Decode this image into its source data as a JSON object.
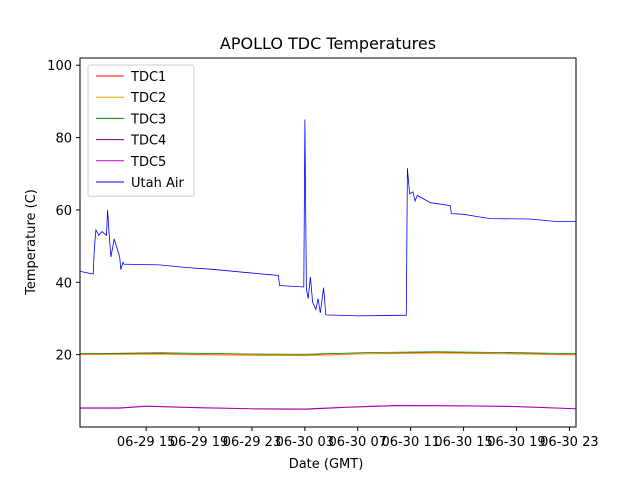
{
  "chart_data": {
    "type": "line",
    "title": "APOLLO TDC Temperatures",
    "xlabel": "Date (GMT)",
    "ylabel": "Temperature (C)",
    "xlim": [
      "2017-06-29 10:00",
      "2017-06-30 23:30"
    ],
    "ylim": [
      0,
      102
    ],
    "grid": false,
    "legend_position": "top-left",
    "x_ticks": [
      {
        "t": "2017-06-29 15:00",
        "label": "06-29 15"
      },
      {
        "t": "2017-06-29 19:00",
        "label": "06-29 19"
      },
      {
        "t": "2017-06-29 23:00",
        "label": "06-29 23"
      },
      {
        "t": "2017-06-30 03:00",
        "label": "06-30 03"
      },
      {
        "t": "2017-06-30 07:00",
        "label": "06-30 07"
      },
      {
        "t": "2017-06-30 11:00",
        "label": "06-30 11"
      },
      {
        "t": "2017-06-30 15:00",
        "label": "06-30 15"
      },
      {
        "t": "2017-06-30 19:00",
        "label": "06-30 19"
      },
      {
        "t": "2017-06-30 23:00",
        "label": "06-30 23"
      }
    ],
    "y_ticks": [
      20,
      40,
      60,
      80,
      100
    ],
    "series": [
      {
        "name": "TDC1",
        "color": "#ff0000",
        "points": [
          [
            "2017-06-29 10:00",
            20.1
          ],
          [
            "2017-06-29 16:00",
            20.2
          ],
          [
            "2017-06-29 22:00",
            19.9
          ],
          [
            "2017-06-30 03:00",
            19.8
          ],
          [
            "2017-06-30 08:00",
            20.3
          ],
          [
            "2017-06-30 13:00",
            20.5
          ],
          [
            "2017-06-30 18:00",
            20.3
          ],
          [
            "2017-06-30 23:30",
            20.0
          ]
        ]
      },
      {
        "name": "TDC2",
        "color": "#ffa500",
        "points": [
          [
            "2017-06-29 10:00",
            20.0
          ],
          [
            "2017-06-29 16:00",
            20.1
          ],
          [
            "2017-06-29 22:00",
            19.8
          ],
          [
            "2017-06-30 03:00",
            19.7
          ],
          [
            "2017-06-30 08:00",
            20.2
          ],
          [
            "2017-06-30 13:00",
            20.4
          ],
          [
            "2017-06-30 18:00",
            20.2
          ],
          [
            "2017-06-30 23:30",
            19.9
          ]
        ]
      },
      {
        "name": "TDC3",
        "color": "#008000",
        "points": [
          [
            "2017-06-29 10:00",
            20.3
          ],
          [
            "2017-06-29 16:00",
            20.5
          ],
          [
            "2017-06-29 22:00",
            20.2
          ],
          [
            "2017-06-30 03:00",
            20.1
          ],
          [
            "2017-06-30 08:00",
            20.6
          ],
          [
            "2017-06-30 13:00",
            20.8
          ],
          [
            "2017-06-30 18:00",
            20.6
          ],
          [
            "2017-06-30 23:30",
            20.3
          ]
        ]
      },
      {
        "name": "TDC4",
        "color": "#800080",
        "points": [
          [
            "2017-06-29 10:00",
            5.2
          ],
          [
            "2017-06-29 13:00",
            5.2
          ],
          [
            "2017-06-29 15:00",
            5.7
          ],
          [
            "2017-06-29 19:00",
            5.3
          ],
          [
            "2017-06-29 23:00",
            5.0
          ],
          [
            "2017-06-30 03:00",
            4.9
          ],
          [
            "2017-06-30 06:00",
            5.4
          ],
          [
            "2017-06-30 10:00",
            5.9
          ],
          [
            "2017-06-30 15:00",
            5.8
          ],
          [
            "2017-06-30 19:00",
            5.6
          ],
          [
            "2017-06-30 23:30",
            5.0
          ]
        ]
      },
      {
        "name": "TDC5",
        "color": "#c000c0",
        "points": [
          [
            "2017-06-29 10:00",
            5.3
          ],
          [
            "2017-06-29 13:00",
            5.3
          ],
          [
            "2017-06-29 15:00",
            5.8
          ],
          [
            "2017-06-29 19:00",
            5.4
          ],
          [
            "2017-06-29 23:00",
            5.1
          ],
          [
            "2017-06-30 03:00",
            5.0
          ],
          [
            "2017-06-30 06:00",
            5.5
          ],
          [
            "2017-06-30 10:00",
            6.0
          ],
          [
            "2017-06-30 15:00",
            5.9
          ],
          [
            "2017-06-30 19:00",
            5.7
          ],
          [
            "2017-06-30 23:30",
            5.1
          ]
        ]
      },
      {
        "name": "Utah Air",
        "color": "#0000ff",
        "points": [
          [
            "2017-06-29 10:00",
            43.0
          ],
          [
            "2017-06-29 11:00",
            42.3
          ],
          [
            "2017-06-29 11:05",
            49.0
          ],
          [
            "2017-06-29 11:12",
            54.5
          ],
          [
            "2017-06-29 11:25",
            53.0
          ],
          [
            "2017-06-29 11:40",
            54.0
          ],
          [
            "2017-06-29 12:00",
            53.0
          ],
          [
            "2017-06-29 12:05",
            60.0
          ],
          [
            "2017-06-29 12:12",
            53.5
          ],
          [
            "2017-06-29 12:20",
            47.0
          ],
          [
            "2017-06-29 12:35",
            52.0
          ],
          [
            "2017-06-29 13:00",
            47.0
          ],
          [
            "2017-06-29 13:05",
            43.5
          ],
          [
            "2017-06-29 13:15",
            45.5
          ],
          [
            "2017-06-29 13:20",
            45.0
          ],
          [
            "2017-06-29 16:00",
            44.8
          ],
          [
            "2017-06-29 18:00",
            44.1
          ],
          [
            "2017-06-29 20:00",
            43.6
          ],
          [
            "2017-06-29 22:00",
            42.9
          ],
          [
            "2017-06-30 00:00",
            42.2
          ],
          [
            "2017-06-30 01:00",
            41.9
          ],
          [
            "2017-06-30 01:05",
            39.1
          ],
          [
            "2017-06-30 02:55",
            38.7
          ],
          [
            "2017-06-30 03:00",
            85.0
          ],
          [
            "2017-06-30 03:07",
            38.0
          ],
          [
            "2017-06-30 03:15",
            35.5
          ],
          [
            "2017-06-30 03:25",
            41.5
          ],
          [
            "2017-06-30 03:35",
            34.5
          ],
          [
            "2017-06-30 03:50",
            32.5
          ],
          [
            "2017-06-30 04:00",
            35.5
          ],
          [
            "2017-06-30 04:10",
            31.5
          ],
          [
            "2017-06-30 04:25",
            38.5
          ],
          [
            "2017-06-30 04:35",
            31.0
          ],
          [
            "2017-06-30 07:00",
            30.7
          ],
          [
            "2017-06-30 10:40",
            30.9
          ],
          [
            "2017-06-30 10:45",
            71.5
          ],
          [
            "2017-06-30 10:55",
            64.5
          ],
          [
            "2017-06-30 11:10",
            65.0
          ],
          [
            "2017-06-30 11:20",
            62.5
          ],
          [
            "2017-06-30 11:30",
            64.0
          ],
          [
            "2017-06-30 12:30",
            62.0
          ],
          [
            "2017-06-30 14:00",
            61.2
          ],
          [
            "2017-06-30 14:05",
            59.0
          ],
          [
            "2017-06-30 15:00",
            58.8
          ],
          [
            "2017-06-30 16:00",
            58.2
          ],
          [
            "2017-06-30 17:00",
            57.6
          ],
          [
            "2017-06-30 20:00",
            57.5
          ],
          [
            "2017-06-30 22:00",
            56.8
          ],
          [
            "2017-06-30 23:30",
            56.8
          ]
        ]
      }
    ]
  }
}
